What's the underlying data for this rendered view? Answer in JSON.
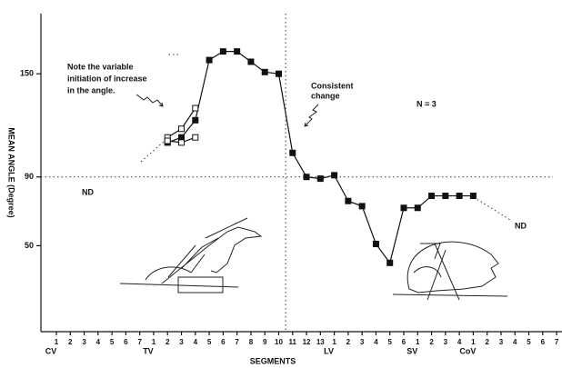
{
  "chart_data": {
    "type": "line",
    "y_label": "MEAN ANGLE (Degree)",
    "x_label": "SEGMENTS",
    "categories": [
      "1",
      "2",
      "3",
      "4",
      "5",
      "6",
      "7",
      "1",
      "2",
      "3",
      "4",
      "5",
      "6",
      "7",
      "8",
      "9",
      "10",
      "11",
      "12",
      "13",
      "1",
      "2",
      "3",
      "4",
      "5",
      "6",
      "1",
      "2",
      "3",
      "4",
      "1",
      "2",
      "3",
      "4",
      "5",
      "6",
      "7"
    ],
    "category_groups": [
      "CV",
      null,
      null,
      null,
      null,
      null,
      null,
      "TV",
      null,
      null,
      null,
      null,
      null,
      null,
      null,
      null,
      null,
      null,
      null,
      null,
      "LV",
      null,
      null,
      null,
      null,
      null,
      "SV",
      null,
      null,
      null,
      "CoV",
      null,
      null,
      null,
      null,
      null,
      null
    ],
    "series": [
      {
        "color": "#111111",
        "marker": "filled",
        "values": [
          null,
          null,
          null,
          null,
          null,
          null,
          null,
          null,
          110,
          113,
          123,
          158,
          163,
          163,
          157,
          151,
          150,
          104,
          90,
          89,
          91,
          76,
          73,
          51,
          40,
          72,
          72,
          79,
          79,
          79,
          79,
          null,
          null,
          null,
          null,
          null,
          null
        ]
      },
      {
        "color": "#111111",
        "marker": "open",
        "values": [
          null,
          null,
          null,
          null,
          null,
          null,
          null,
          null,
          113,
          118,
          130,
          null,
          null,
          null,
          null,
          null,
          null,
          null,
          null,
          null,
          null,
          null,
          null,
          null,
          null,
          null,
          null,
          null,
          null,
          null,
          null,
          null,
          null,
          null,
          null,
          null,
          null
        ]
      },
      {
        "color": "#111111",
        "marker": "open",
        "values": [
          null,
          null,
          null,
          null,
          null,
          null,
          null,
          null,
          111,
          110,
          113,
          null,
          null,
          null,
          null,
          null,
          null,
          null,
          null,
          null,
          null,
          null,
          null,
          null,
          null,
          null,
          null,
          null,
          null,
          null,
          null,
          null,
          null,
          null,
          null,
          null,
          null
        ]
      }
    ],
    "ylim": [
      0,
      185
    ],
    "yticks": [
      50,
      90,
      150
    ],
    "reference_y": 90,
    "reference_x": 16.5,
    "annotations": {
      "note": [
        "Note the variable",
        "initiation of increase",
        "in the angle."
      ],
      "consistent": [
        "Consistent",
        "change"
      ],
      "n": "N = 3",
      "nd_left": "ND",
      "nd_right": "ND"
    }
  }
}
